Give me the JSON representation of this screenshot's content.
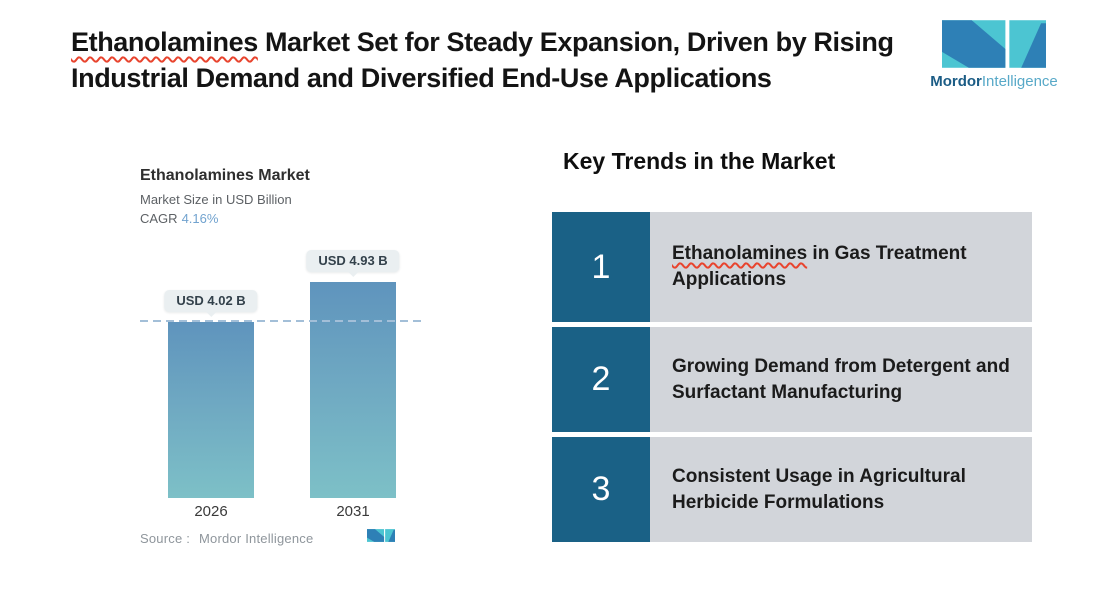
{
  "header": {
    "title": {
      "highlight": "Ethanolamines",
      "rest": " Market Set for Steady Expansion, Driven by Rising Industrial Demand and Diversified End-Use Applications"
    }
  },
  "brand": {
    "icon": "mordor-intelligence-monogram",
    "name_primary": "Mordor",
    "name_secondary": "Intelligence"
  },
  "chart": {
    "title": "Ethanolamines Market",
    "subtitle": "Market Size in USD Billion",
    "cagr_label": "CAGR",
    "cagr_value": "4.16%",
    "source_label": "Source :",
    "source_value": "Mordor Intelligence"
  },
  "chart_data": {
    "type": "bar",
    "title": "Ethanolamines Market",
    "ylabel": "Market Size in USD Billion",
    "categories": [
      "2026",
      "2031"
    ],
    "values": [
      4.02,
      4.93
    ],
    "value_labels": [
      "USD 4.02 B",
      "USD 4.93 B"
    ],
    "cagr_pct": 4.16,
    "baseline": 4.02,
    "baseline_style": "dashed",
    "ylim": [
      0,
      5.5
    ],
    "grid": false,
    "legend": false
  },
  "trends": {
    "heading": "Key Trends in the Market",
    "items": [
      {
        "number": "1",
        "highlight": "Ethanolamines",
        "rest": " in Gas Treatment Applications"
      },
      {
        "number": "2",
        "highlight": "",
        "rest": "Growing Demand from Detergent and Surfactant Manufacturing"
      },
      {
        "number": "3",
        "highlight": "",
        "rest": "Consistent Usage in Agricultural Herbicide Formulations"
      }
    ]
  },
  "colors": {
    "trend_number_bg": "#1A6186",
    "trend_panel_bg": "#D2D5DA",
    "bar_gradient_top": "#5F94BD",
    "bar_gradient_bottom": "#7DC0C7",
    "baseline_dash": "#A3BFD8",
    "cagr_value": "#72A3CF",
    "value_label_bg": "#EAEFF1",
    "logo_teal": "#4CC5D2",
    "logo_blue": "#2E80B6",
    "logo_text_dark": "#1B5C85",
    "logo_text_light": "#58A9C8",
    "spellcheck_underline": "#E8442E"
  }
}
